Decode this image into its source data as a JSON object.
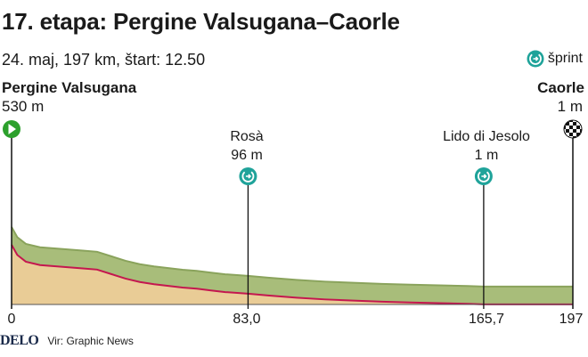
{
  "title": "17. etapa: Pergine Valsugana–Caorle",
  "subtitle": "24. maj, 197 km, štart: 12.50",
  "legend": {
    "sprint_label": "šprint",
    "icon": "sprint-icon"
  },
  "colors": {
    "green_top": "#a8bd7a",
    "green_side": "#8aa35c",
    "fill": "#e9cc96",
    "profile_line": "#c4174f",
    "accent": "#1fa39a",
    "text": "#1a1a1a"
  },
  "start": {
    "name": "Pergine Valsugana",
    "altitude": "530 m",
    "icon": "start-flag-icon"
  },
  "finish": {
    "name": "Caorle",
    "altitude": "1 m",
    "icon": "checkered-flag-icon"
  },
  "waypoints": [
    {
      "name": "Rosà",
      "altitude": "96 m",
      "km": 83.0,
      "type": "sprint"
    },
    {
      "name": "Lido di Jesolo",
      "altitude": "1 m",
      "km": 165.7,
      "type": "sprint"
    }
  ],
  "footer": {
    "logo": "DELO",
    "source": "Vir: Graphic News"
  },
  "chart_data": {
    "type": "area",
    "x_unit": "km",
    "y_unit": "m",
    "x": [
      0,
      2,
      5,
      10,
      15,
      20,
      25,
      30,
      35,
      40,
      45,
      50,
      55,
      60,
      65,
      70,
      75,
      83,
      90,
      100,
      110,
      120,
      130,
      140,
      150,
      160,
      165.7,
      175,
      185,
      197
    ],
    "y": [
      530,
      440,
      380,
      350,
      340,
      330,
      320,
      310,
      270,
      230,
      200,
      180,
      165,
      150,
      140,
      125,
      110,
      96,
      80,
      60,
      45,
      35,
      25,
      18,
      12,
      6,
      1,
      1,
      1,
      1
    ],
    "xlim": [
      0,
      197
    ],
    "x_ticks": [
      "0",
      "83,0",
      "165,7",
      "197"
    ]
  }
}
